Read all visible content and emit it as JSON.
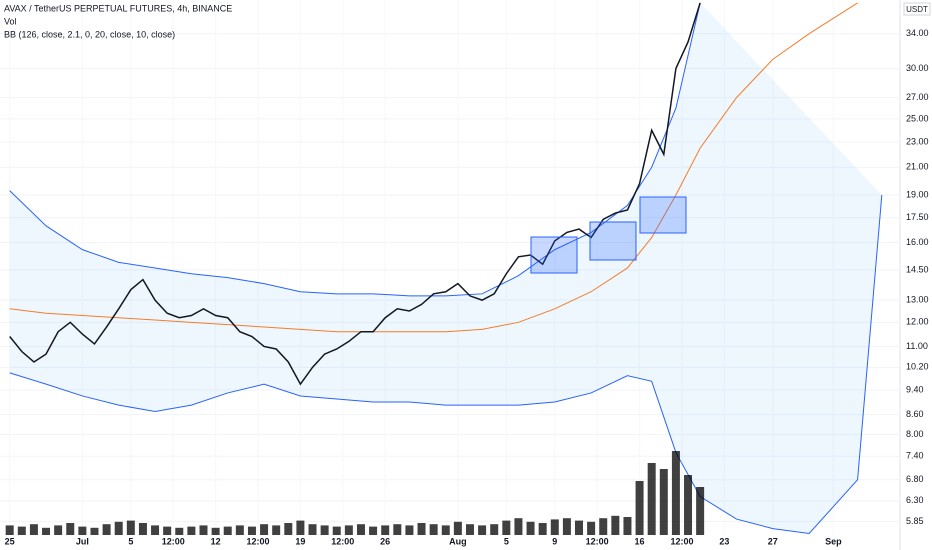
{
  "chart_data": {
    "type": "line",
    "title": "AVAX / TetherUS PERPETUAL FUTURES, 4h, BINANCE",
    "volume_label": "Vol",
    "indicator_label": "BB (126, close, 2.1, 0, 20, close, 10, close)",
    "currency": "USDT",
    "log_scale": true,
    "grid": true,
    "x": [
      0,
      1,
      2,
      3,
      4,
      5,
      6,
      7,
      8,
      9,
      10,
      11,
      12,
      13,
      14,
      15,
      16,
      17,
      18,
      19,
      20,
      21,
      22,
      23,
      24,
      25,
      26,
      27,
      28,
      29,
      30,
      31,
      32,
      33,
      34,
      35,
      36,
      37,
      38,
      39,
      40,
      41,
      42,
      43,
      44,
      45,
      46,
      47,
      48,
      49,
      50,
      51,
      52,
      53,
      54,
      55,
      56,
      57
    ],
    "series": [
      {
        "name": "Close",
        "color": "#131722",
        "values": [
          11.4,
          10.8,
          10.4,
          10.7,
          11.6,
          12.0,
          11.5,
          11.1,
          11.8,
          12.6,
          13.5,
          14.0,
          13.0,
          12.4,
          12.2,
          12.3,
          12.6,
          12.3,
          12.2,
          11.6,
          11.4,
          11.0,
          10.9,
          10.4,
          9.6,
          10.2,
          10.7,
          10.9,
          11.2,
          11.6,
          11.6,
          12.2,
          12.6,
          12.5,
          12.8,
          13.3,
          13.4,
          13.8,
          13.2,
          13.0,
          13.3,
          14.3,
          15.2,
          15.3,
          14.8,
          16.1,
          16.6,
          16.8,
          16.3,
          17.4,
          17.8,
          18.0,
          19.8,
          24.0,
          22.0,
          30.0,
          33.0,
          38.0
        ]
      },
      {
        "name": "Volume",
        "color": "#000000",
        "axis": "volume",
        "values": [
          8,
          7,
          9,
          6,
          8,
          10,
          7,
          6,
          9,
          11,
          12,
          10,
          8,
          7,
          6,
          7,
          8,
          6,
          7,
          8,
          7,
          9,
          8,
          10,
          12,
          9,
          8,
          7,
          8,
          9,
          7,
          8,
          9,
          8,
          10,
          9,
          8,
          11,
          9,
          8,
          9,
          12,
          14,
          11,
          10,
          13,
          14,
          12,
          11,
          14,
          16,
          15,
          45,
          60,
          55,
          70,
          50,
          40
        ]
      }
    ],
    "band_x": [
      0,
      3,
      6,
      9,
      12,
      15,
      18,
      21,
      24,
      27,
      30,
      33,
      36,
      39,
      42,
      45,
      48,
      51,
      53,
      55,
      57,
      60,
      63,
      66,
      70,
      72
    ],
    "bands": [
      {
        "name": "Upper",
        "color": "#2962ff",
        "values": [
          19.3,
          17.0,
          15.6,
          14.9,
          14.6,
          14.3,
          14.1,
          13.8,
          13.4,
          13.3,
          13.3,
          13.2,
          13.2,
          13.3,
          14.2,
          15.6,
          16.6,
          18.3,
          21,
          26,
          38,
          null,
          null,
          null,
          null,
          null
        ]
      },
      {
        "name": "Basis",
        "color": "#f57c2a",
        "values": [
          12.6,
          12.4,
          12.3,
          12.2,
          12.1,
          12.0,
          11.9,
          11.8,
          11.7,
          11.6,
          11.6,
          11.6,
          11.6,
          11.7,
          12.0,
          12.6,
          13.4,
          14.6,
          16.3,
          19.0,
          22.5,
          27,
          31,
          34,
          38,
          null
        ]
      },
      {
        "name": "Lower",
        "color": "#2962ff",
        "values": [
          10.0,
          9.6,
          9.2,
          8.9,
          8.7,
          8.9,
          9.3,
          9.6,
          9.2,
          9.1,
          9.0,
          9.0,
          8.9,
          8.9,
          8.9,
          9.0,
          9.3,
          9.9,
          9.7,
          7.5,
          6.4,
          5.9,
          5.7,
          5.6,
          6.8,
          19.0
        ]
      }
    ],
    "xlim": [
      -0.8,
      73.5
    ],
    "ylim": [
      5.57,
      38.4
    ],
    "vlim": [
      0,
      100
    ],
    "xticks": [
      {
        "value": 0,
        "label": "25"
      },
      {
        "value": 6,
        "label": "Jul"
      },
      {
        "value": 10,
        "label": "5"
      },
      {
        "value": 13.5,
        "label": "12:00"
      },
      {
        "value": 17,
        "label": "12"
      },
      {
        "value": 20.5,
        "label": "12:00"
      },
      {
        "value": 24,
        "label": "19"
      },
      {
        "value": 27.5,
        "label": "12:00"
      },
      {
        "value": 31,
        "label": "26"
      },
      {
        "value": 37,
        "label": "Aug"
      },
      {
        "value": 41,
        "label": "5"
      },
      {
        "value": 45,
        "label": "9"
      },
      {
        "value": 48.5,
        "label": "12:00"
      },
      {
        "value": 52,
        "label": "16"
      },
      {
        "value": 55.5,
        "label": "12:00"
      },
      {
        "value": 59,
        "label": "23"
      },
      {
        "value": 63,
        "label": "27"
      },
      {
        "value": 68,
        "label": "Sep"
      }
    ],
    "yticks": [
      {
        "value": 5.85,
        "label": "5.85"
      },
      {
        "value": 6.3,
        "label": "6.30"
      },
      {
        "value": 6.8,
        "label": "6.80"
      },
      {
        "value": 7.4,
        "label": "7.40"
      },
      {
        "value": 8,
        "label": "8.00"
      },
      {
        "value": 8.6,
        "label": "8.60"
      },
      {
        "value": 9.4,
        "label": "9.40"
      },
      {
        "value": 10.2,
        "label": "10.20"
      },
      {
        "value": 11,
        "label": "11.00"
      },
      {
        "value": 12,
        "label": "12.00"
      },
      {
        "value": 13,
        "label": "13.00"
      },
      {
        "value": 14.5,
        "label": "14.50"
      },
      {
        "value": 16,
        "label": "16.00"
      },
      {
        "value": 17.5,
        "label": "17.50"
      },
      {
        "value": 19,
        "label": "19.00"
      },
      {
        "value": 21,
        "label": "21.00"
      },
      {
        "value": 23,
        "label": "23.00"
      },
      {
        "value": 25,
        "label": "25.00"
      },
      {
        "value": 27,
        "label": "27.00"
      },
      {
        "value": 30,
        "label": "30.00"
      },
      {
        "value": 34,
        "label": "34.00"
      }
    ]
  }
}
